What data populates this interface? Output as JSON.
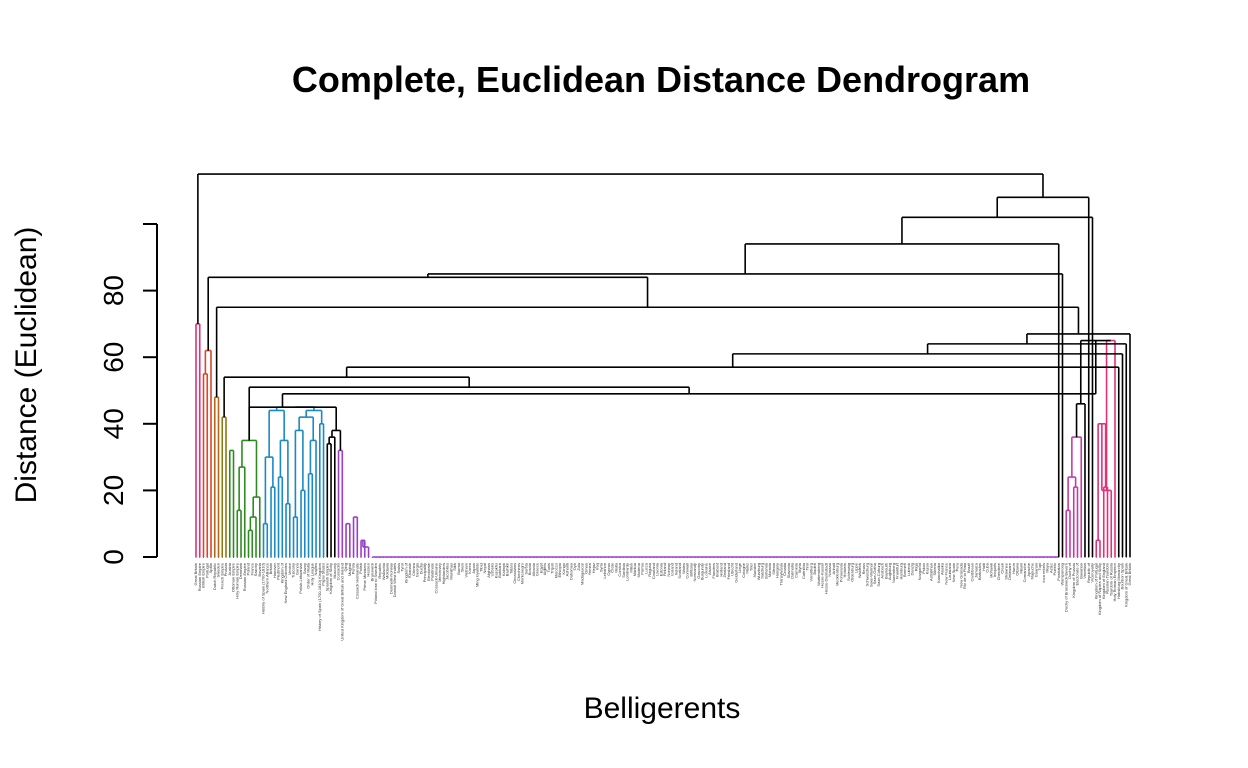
{
  "chart_data": {
    "type": "dendrogram",
    "title": "Complete, Euclidean Distance Dendrogram",
    "xlabel": "Belligerents",
    "ylabel": "Distance (Euclidean)",
    "ylim": [
      0,
      100
    ],
    "yticks": [
      0,
      20,
      40,
      60,
      80
    ],
    "ytick_labels": [
      "0",
      "20",
      "40",
      "60",
      "80"
    ],
    "leaf_count": 250,
    "clusters": [
      {
        "name": "",
        "color": "#e0317a",
        "leaf_range": [
          0,
          2
        ]
      },
      {
        "name": "",
        "color": "#d9452c",
        "leaf_range": [
          2,
          5
        ]
      },
      {
        "name": "",
        "color": "#b8651a",
        "leaf_range": [
          5,
          7
        ]
      },
      {
        "name": "",
        "color": "#8a7a12",
        "leaf_range": [
          7,
          9
        ]
      },
      {
        "name": "",
        "color": "#2e8b22",
        "leaf_range": [
          9,
          18
        ]
      },
      {
        "name": "",
        "color": "#1a8ac4",
        "leaf_range": [
          18,
          35
        ]
      },
      {
        "name": "",
        "color": "#9b3dc9",
        "leaf_range": [
          35,
          232
        ]
      },
      {
        "name": "",
        "color": "#c43aa8",
        "leaf_range": [
          232,
          240
        ]
      },
      {
        "name": "",
        "color": "#e0317a",
        "leaf_range": [
          240,
          250
        ]
      }
    ],
    "merges": [
      {
        "id": "g1",
        "children": [
          "L:0",
          "L:1"
        ],
        "height": 70,
        "color": "#e0317a"
      },
      {
        "id": "g2",
        "children": [
          "L:2",
          "L:3"
        ],
        "height": 55,
        "color": "#d9452c"
      },
      {
        "id": "g3",
        "children": [
          "g2",
          "L:4"
        ],
        "height": 62,
        "color": "#d9452c"
      },
      {
        "id": "g4",
        "children": [
          "L:5",
          "L:6"
        ],
        "height": 48,
        "color": "#b8651a"
      },
      {
        "id": "g5",
        "children": [
          "L:7",
          "L:8"
        ],
        "height": 42,
        "color": "#8a7a12"
      },
      {
        "id": "gr1",
        "children": [
          "L:9",
          "L:10"
        ],
        "height": 32,
        "color": "#2e8b22"
      },
      {
        "id": "gr2",
        "children": [
          "L:11",
          "L:12"
        ],
        "height": 14,
        "color": "#2e8b22"
      },
      {
        "id": "gr3",
        "children": [
          "gr2",
          "L:13"
        ],
        "height": 27,
        "color": "#2e8b22"
      },
      {
        "id": "gr4",
        "children": [
          "L:14",
          "L:15"
        ],
        "height": 8,
        "color": "#2e8b22"
      },
      {
        "id": "gr5",
        "children": [
          "gr4",
          "L:16"
        ],
        "height": 12,
        "color": "#2e8b22"
      },
      {
        "id": "gr6",
        "children": [
          "gr5",
          "L:17"
        ],
        "height": 18,
        "color": "#2e8b22"
      },
      {
        "id": "gr7",
        "children": [
          "gr3",
          "gr6"
        ],
        "height": 35,
        "color": "#2e8b22"
      },
      {
        "id": "bl1",
        "children": [
          "L:18",
          "L:19"
        ],
        "height": 10,
        "color": "#1a8ac4"
      },
      {
        "id": "bl2",
        "children": [
          "L:20",
          "L:21"
        ],
        "height": 21,
        "color": "#1a8ac4"
      },
      {
        "id": "bl3",
        "children": [
          "bl1",
          "bl2"
        ],
        "height": 30,
        "color": "#1a8ac4"
      },
      {
        "id": "bl4",
        "children": [
          "L:22",
          "L:23"
        ],
        "height": 24,
        "color": "#1a8ac4"
      },
      {
        "id": "bl5",
        "children": [
          "L:24",
          "L:25"
        ],
        "height": 16,
        "color": "#1a8ac4"
      },
      {
        "id": "bl6",
        "children": [
          "bl4",
          "bl5"
        ],
        "height": 35,
        "color": "#1a8ac4"
      },
      {
        "id": "bl7",
        "children": [
          "L:26",
          "L:27"
        ],
        "height": 12,
        "color": "#1a8ac4"
      },
      {
        "id": "bl8",
        "children": [
          "L:28",
          "L:29"
        ],
        "height": 20,
        "color": "#1a8ac4"
      },
      {
        "id": "bl9",
        "children": [
          "bl7",
          "bl8"
        ],
        "height": 38,
        "color": "#1a8ac4"
      },
      {
        "id": "bl10",
        "children": [
          "L:30",
          "L:31"
        ],
        "height": 25,
        "color": "#1a8ac4"
      },
      {
        "id": "bl11",
        "children": [
          "bl10",
          "L:32"
        ],
        "height": 35,
        "color": "#1a8ac4"
      },
      {
        "id": "bl12",
        "children": [
          "L:33",
          "L:34"
        ],
        "height": 40,
        "color": "#1a8ac4"
      },
      {
        "id": "bl13",
        "children": [
          "bl3",
          "bl6"
        ],
        "height": 44,
        "color": "#1a8ac4"
      },
      {
        "id": "bl14",
        "children": [
          "bl9",
          "bl11"
        ],
        "height": 42,
        "color": "#1a8ac4"
      },
      {
        "id": "bl15",
        "children": [
          "bl14",
          "bl12"
        ],
        "height": 44,
        "color": "#1a8ac4"
      },
      {
        "id": "bl16",
        "children": [
          "bl13",
          "bl15"
        ],
        "height": 45,
        "color": "#1a8ac4"
      },
      {
        "id": "pu_base",
        "children": [
          "L:38",
          "L:39"
        ],
        "height": 32,
        "color": "#9b3dc9"
      },
      {
        "id": "pu_low1",
        "children": [
          "L:40",
          "L:41"
        ],
        "height": 10,
        "color": "#9b3dc9"
      },
      {
        "id": "pu_low2",
        "children": [
          "L:42",
          "L:43"
        ],
        "height": 12,
        "color": "#9b3dc9"
      },
      {
        "id": "pu_low3",
        "children": [
          "L:44",
          "L:45"
        ],
        "height": 5,
        "color": "#9b3dc9"
      },
      {
        "id": "pu_low4",
        "children": [
          "pu_low3",
          "L:46"
        ],
        "height": 3,
        "color": "#9b3dc9"
      },
      {
        "id": "pu_flat",
        "children": [
          "R:47:230"
        ],
        "height": 0,
        "color": "#9b3dc9"
      },
      {
        "id": "m1",
        "children": [
          "L:35",
          "L:36"
        ],
        "height": 34,
        "color": "#000000"
      },
      {
        "id": "m2",
        "children": [
          "m1",
          "L:37"
        ],
        "height": 36,
        "color": "#000000"
      },
      {
        "id": "m3",
        "children": [
          "m2",
          "pu_base"
        ],
        "height": 38,
        "color": "#000000"
      },
      {
        "id": "m4",
        "children": [
          "bl16",
          "m3"
        ],
        "height": 45,
        "color": "#000000"
      },
      {
        "id": "m5",
        "children": [
          "gr7",
          "m4"
        ],
        "height": 45,
        "color": "#000000"
      },
      {
        "id": "rp1",
        "children": [
          "L:232",
          "L:233"
        ],
        "height": 14,
        "color": "#c43aa8"
      },
      {
        "id": "rp2",
        "children": [
          "L:234",
          "L:235"
        ],
        "height": 21,
        "color": "#c43aa8"
      },
      {
        "id": "rp3",
        "children": [
          "rp1",
          "rp2"
        ],
        "height": 24,
        "color": "#c43aa8"
      },
      {
        "id": "rp4",
        "children": [
          "rp3",
          "L:236"
        ],
        "height": 36,
        "color": "#c43aa8"
      },
      {
        "id": "rp5",
        "children": [
          "rp4",
          "L:237"
        ],
        "height": 46,
        "color": "#000000"
      },
      {
        "id": "rr1",
        "children": [
          "L:240",
          "L:241"
        ],
        "height": 5,
        "color": "#e0317a"
      },
      {
        "id": "rr2",
        "children": [
          "L:242",
          "L:243"
        ],
        "height": 21,
        "color": "#e0317a"
      },
      {
        "id": "rr3",
        "children": [
          "rr1",
          "rr2"
        ],
        "height": 40,
        "color": "#e0317a"
      },
      {
        "id": "rr4",
        "children": [
          "rr3",
          "L:244"
        ],
        "height": 20,
        "color": "#e0317a"
      },
      {
        "id": "rr5",
        "children": [
          "rr4",
          "L:245"
        ],
        "height": 65,
        "color": "#e0317a"
      },
      {
        "id": "rr6",
        "children": [
          "rp5",
          "rr5"
        ],
        "height": 65,
        "color": "#000000"
      },
      {
        "id": "k1",
        "children": [
          "m5",
          "rr6"
        ],
        "height": 49,
        "color": "#000000"
      },
      {
        "id": "k2",
        "children": [
          "gr7",
          "k1"
        ],
        "height": 51,
        "color": "#000000"
      },
      {
        "id": "k3",
        "children": [
          "g5",
          "k2"
        ],
        "height": 54,
        "color": "#000000"
      },
      {
        "id": "k4",
        "children": [
          "k3",
          "L:246"
        ],
        "height": 57,
        "color": "#000000"
      },
      {
        "id": "k5",
        "children": [
          "k4",
          "L:247"
        ],
        "height": 61,
        "color": "#000000"
      },
      {
        "id": "k6",
        "children": [
          "k5",
          "L:248"
        ],
        "height": 64,
        "color": "#000000"
      },
      {
        "id": "k7",
        "children": [
          "k6",
          "L:249"
        ],
        "height": 67,
        "color": "#000000"
      },
      {
        "id": "k8",
        "children": [
          "g4",
          "k7"
        ],
        "height": 75,
        "color": "#000000"
      },
      {
        "id": "k9",
        "children": [
          "g3",
          "k8"
        ],
        "height": 84,
        "color": "#000000"
      },
      {
        "id": "k10",
        "children": [
          "k9",
          "L:231"
        ],
        "height": 85,
        "color": "#000000"
      },
      {
        "id": "k11",
        "children": [
          "k10",
          "L:230"
        ],
        "height": 94,
        "color": "#000000"
      },
      {
        "id": "k12",
        "children": [
          "k11",
          "L:239"
        ],
        "height": 102,
        "color": "#000000"
      },
      {
        "id": "k13",
        "children": [
          "k12",
          "L:238"
        ],
        "height": 108,
        "color": "#000000"
      },
      {
        "id": "root",
        "children": [
          "g1",
          "k13"
        ],
        "height": 115,
        "color": "#000000"
      }
    ],
    "leaf_labels": [
      "Great Britain",
      "Russian Empire",
      "British Empire",
      "Portugal",
      "Spain",
      "Dutch Republic",
      "Sweden",
      "French Empire",
      "Prussia",
      "Austria",
      "Ottoman Empire",
      "Holy Roman Empire",
      "Denmark",
      "Russian Empire",
      "Poland",
      "France",
      "Saxony",
      "Bavaria",
      "History of Spain (1700-1810)",
      "Northern Alliance",
      "Britain",
      "Hanover",
      "Piedmont",
      "Kingdom of",
      "New England Colonies",
      "Venice",
      "Tuscany",
      "Genoa",
      "Polish-Lithuanian",
      "Savoy",
      "Order of Malta",
      "Holy League",
      "Naples",
      "History of Spain (1700-1810) Kingdom",
      "Papal States",
      "Spanish Empire",
      "Kingdom of Sicily",
      "Muscovy",
      "Cossacks",
      "United Kingdom of Great Britain and Ireland",
      "Qing",
      "Mughal",
      "Persia",
      "Cossack Hetmanate",
      "Polish",
      "Prime Ministers",
      "Hessen",
      "Brunswick",
      "Poland lose to Sweden",
      "Republic",
      "Wallachia",
      "Moldavia",
      "Denmark-Norway",
      "Danish West Indies",
      "Swiss",
      "Tyrol",
      "Kingdom of",
      "Khanate",
      "Crimea",
      "Georgia",
      "Duchy",
      "Principality",
      "Electorate",
      "Palatinate",
      "Cossack-Ukraine",
      "Mercenary",
      "Highlanders",
      "Jacobites",
      "Marathas",
      "Sikh",
      "Burma",
      "Siam",
      "Vietnam",
      "Korea",
      "Japan",
      "Ming loyalists",
      "Tibet",
      "Nepal",
      "Afghans",
      "Uzbeks",
      "Kazakhs",
      "Bukhara",
      "Kalmyk",
      "Bashkir",
      "Tatars",
      "Circassians",
      "Chechens",
      "Montenegro",
      "Serbia",
      "Bosnia",
      "Albania",
      "Greece",
      "Egypt",
      "Algiers",
      "Tunis",
      "Tripoli",
      "Morocco",
      "Ethiopia",
      "Kongo",
      "Ashanti",
      "Dahomey",
      "Oyo",
      "Zulu",
      "Madagascar",
      "Oman",
      "Yemen",
      "Hejaz",
      "Iraq",
      "Syria",
      "Lebanon",
      "Cyprus",
      "Crete",
      "Malta",
      "Corsica",
      "Sardinia",
      "Lombardy",
      "Milan",
      "Mantua",
      "Modena",
      "Parma",
      "Lucca",
      "Ragusa",
      "Courland",
      "Livonia",
      "Estonia",
      "Finland",
      "Norway",
      "Iceland",
      "Ireland",
      "Scotland",
      "Wales",
      "Cornwall",
      "Brittany",
      "Normandy",
      "Gascony",
      "Burgundy",
      "Lorraine",
      "Alsace",
      "Flanders",
      "Brabant",
      "Holland",
      "Zeeland",
      "Friesland",
      "Utrecht",
      "Gelderland",
      "Liege",
      "Cologne",
      "Mainz",
      "Trier",
      "Munster",
      "Wurzburg",
      "Salzburg",
      "Bohemia",
      "Moravia",
      "Silesia",
      "Hungary",
      "Transylvania",
      "Croatia",
      "Slavonia",
      "Dalmatia",
      "Carniola",
      "Styria",
      "Carinthia",
      "Tirol",
      "Vorarlberg",
      "Baden",
      "Wurttemberg",
      "Hesse-Kassel",
      "Hesse-Darmstadt",
      "Nassau",
      "Anhalt",
      "Mecklenburg",
      "Pomerania",
      "Holstein",
      "Schleswig",
      "Oldenburg",
      "Lippe",
      "Waldeck",
      "Reuss",
      "Schwarzburg",
      "Saxe-Weimar",
      "Saxe-Gotha",
      "Saxe-Coburg",
      "Ansbach",
      "Bayreuth",
      "Augsburg",
      "Nuremberg",
      "Frankfurt",
      "Hamburg",
      "Bremen",
      "Lubeck",
      "Danzig",
      "Riga",
      "Novgorod",
      "Pskov",
      "Kazan",
      "Astrakhan",
      "Siberia",
      "Kamchatka",
      "Alaska",
      "New France",
      "Louisiana",
      "New Spain",
      "Peru",
      "New Granada",
      "Rio de la Plata",
      "Brazil",
      "Caribbean",
      "Jamaica",
      "Barbados",
      "Haiti",
      "Cuba",
      "Mohawk",
      "Iroquois",
      "Cherokee",
      "Creek",
      "Shawnee",
      "Delaware",
      "Huron",
      "Ottawa",
      "Miami",
      "Comanche",
      "Apache",
      "Mapuche",
      "Guarani",
      "Tupi",
      "Inca rebels",
      "Maya",
      "Aztec",
      "Pueblo",
      "Powhatan",
      "Wampanoag",
      "Duchy of Brunswick-Bevern",
      "Duchy of",
      "Kingdom of Prussia",
      "Electorate of",
      "Bavarian",
      "Venetian",
      "Republic of",
      "Viceroyalty",
      "Kingdom of Portugal",
      "Kingdom of Naples and Sicily",
      "Kingdom of England",
      "Russian Tsardom",
      "Tsardom of Russia",
      "Holy Roman Emperor",
      "Habsburg Monarchy",
      "Bourbon Spain",
      "Kingdom of Great Britain",
      "Great Britain"
    ]
  }
}
